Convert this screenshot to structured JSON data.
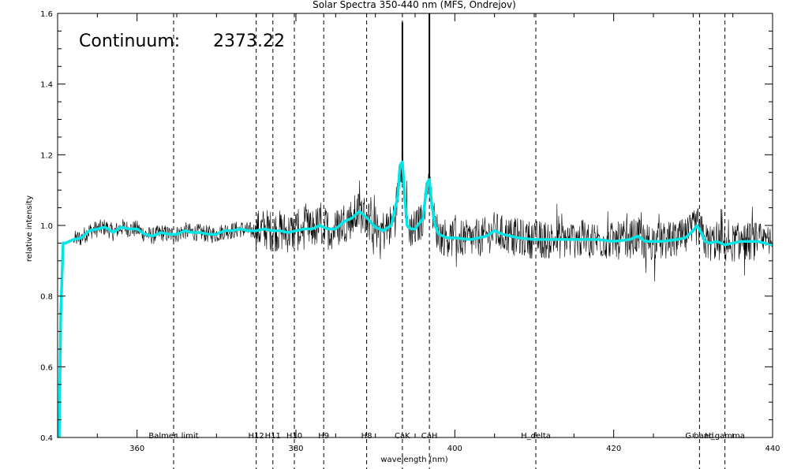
{
  "chart_data": {
    "type": "line",
    "title": "Solar Spectra 350-440 nm (MFS, Ondrejov)",
    "xlabel": "wavelength (nm)",
    "ylabel": "relative intensity",
    "xlim": [
      350,
      440
    ],
    "ylim": [
      0.4,
      1.6
    ],
    "x_ticks": [
      360,
      380,
      400,
      420,
      440
    ],
    "y_ticks": [
      0.4,
      0.6,
      0.8,
      1.0,
      1.2,
      1.4,
      1.6
    ],
    "annotation": {
      "label": "Continuum:",
      "value": "2373.22"
    },
    "reference_lines": [
      {
        "label": "Balmer. limit",
        "x": 364.6,
        "style": "dashed"
      },
      {
        "label": "H12",
        "x": 375.0,
        "style": "dashed"
      },
      {
        "label": "H11",
        "x": 377.1,
        "style": "dashed"
      },
      {
        "label": "H10",
        "x": 379.8,
        "style": "dashed"
      },
      {
        "label": "H9",
        "x": 383.5,
        "style": "dashed"
      },
      {
        "label": "H8",
        "x": 388.9,
        "style": "dashed"
      },
      {
        "label": "CaK",
        "x": 393.4,
        "style": "dashed"
      },
      {
        "label": "CaH",
        "x": 396.8,
        "style": "dashed"
      },
      {
        "label": "H_delta",
        "x": 410.2,
        "style": "dashed"
      },
      {
        "label": "G band",
        "x": 430.8,
        "style": "dashed"
      },
      {
        "label": "H_gamma",
        "x": 434.0,
        "style": "dashed"
      }
    ],
    "series": [
      {
        "color": "#00e5e5",
        "x": [
          350.2,
          350.4,
          350.7,
          351,
          352,
          353,
          354,
          355,
          356,
          357,
          358,
          359,
          360,
          361,
          362,
          363,
          364,
          365,
          366,
          367,
          368,
          369,
          370,
          371,
          372,
          373,
          374,
          375,
          376,
          377,
          378,
          379,
          380,
          381,
          382,
          383,
          384,
          385,
          386,
          387,
          388,
          389,
          390,
          391,
          392,
          392.8,
          393.1,
          393.4,
          393.7,
          394.0,
          394.5,
          395,
          396,
          396.5,
          396.8,
          397.1,
          397.5,
          398,
          399,
          400,
          402,
          404,
          405,
          406,
          408,
          410,
          412,
          414,
          416,
          418,
          420,
          422,
          423,
          424,
          426,
          428,
          429,
          430,
          430.5,
          431,
          431.5,
          432,
          433,
          434,
          436,
          438,
          440
        ],
        "values": [
          0.4,
          0.75,
          0.95,
          0.95,
          0.96,
          0.965,
          0.985,
          0.99,
          0.995,
          0.98,
          0.995,
          0.99,
          0.99,
          0.975,
          0.97,
          0.98,
          0.975,
          0.975,
          0.985,
          0.98,
          0.98,
          0.975,
          0.975,
          0.985,
          0.985,
          0.99,
          0.985,
          0.985,
          0.99,
          0.985,
          0.985,
          0.98,
          0.985,
          0.99,
          0.99,
          1.0,
          0.99,
          0.99,
          1.01,
          1.02,
          1.04,
          1.02,
          0.995,
          0.985,
          1.0,
          1.08,
          1.17,
          1.18,
          1.08,
          1.0,
          0.99,
          0.99,
          1.02,
          1.12,
          1.13,
          1.06,
          1.0,
          0.975,
          0.965,
          0.965,
          0.96,
          0.97,
          0.985,
          0.975,
          0.965,
          0.96,
          0.96,
          0.96,
          0.96,
          0.96,
          0.955,
          0.96,
          0.97,
          0.955,
          0.955,
          0.96,
          0.965,
          0.985,
          1.0,
          0.98,
          0.955,
          0.95,
          0.955,
          0.945,
          0.955,
          0.955,
          0.945
        ]
      }
    ]
  }
}
